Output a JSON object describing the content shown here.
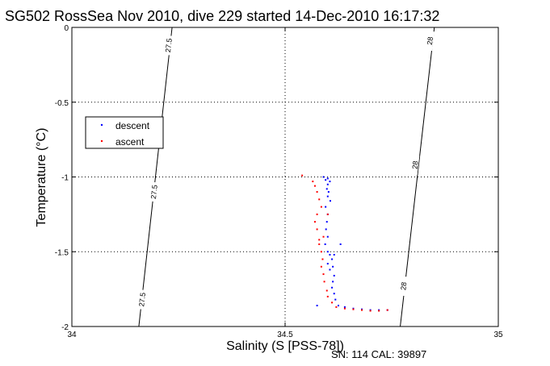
{
  "chart_data": {
    "type": "scatter",
    "title": "SG502 RossSea Nov 2010, dive 229 started 14-Dec-2010 16:17:32",
    "xlabel": "Salinity (S [PSS-78])",
    "ylabel": "Temperature (°C)",
    "xlim": [
      34,
      35
    ],
    "ylim": [
      -2,
      0
    ],
    "x_ticks": [
      34,
      34.5,
      35
    ],
    "x_tick_labels": [
      "34",
      "34.5",
      "35"
    ],
    "y_ticks": [
      0,
      -0.5,
      -1,
      -1.5,
      -2
    ],
    "y_tick_labels": [
      "0",
      "-0.5",
      "-1",
      "-1.5",
      "-2"
    ],
    "grid": true,
    "legend_position": "upper-left",
    "footer": "SN: 114  CAL: 39897",
    "density_contours": [
      {
        "label": "27.5",
        "points": [
          [
            34.157,
            -2
          ],
          [
            34.235,
            0
          ]
        ],
        "label_positions": [
          [
            34.165,
            -1.82
          ],
          [
            34.193,
            -1.1
          ],
          [
            34.227,
            -0.12
          ]
        ]
      },
      {
        "label": "28",
        "points": [
          [
            34.77,
            -2
          ],
          [
            34.85,
            0
          ]
        ],
        "label_positions": [
          [
            34.778,
            -1.73
          ],
          [
            34.805,
            -0.92
          ],
          [
            34.84,
            -0.09
          ]
        ]
      }
    ],
    "series": [
      {
        "name": "descent",
        "color": "#0000ff",
        "marker": "dot",
        "points": [
          [
            34.59,
            -1.0
          ],
          [
            34.6,
            -1.01
          ],
          [
            34.595,
            -1.02
          ],
          [
            34.605,
            -1.03
          ],
          [
            34.6,
            -1.05
          ],
          [
            34.598,
            -1.08
          ],
          [
            34.602,
            -1.1
          ],
          [
            34.6,
            -1.13
          ],
          [
            34.606,
            -1.16
          ],
          [
            34.595,
            -1.2
          ],
          [
            34.6,
            -1.25
          ],
          [
            34.598,
            -1.3
          ],
          [
            34.596,
            -1.35
          ],
          [
            34.6,
            -1.4
          ],
          [
            34.594,
            -1.45
          ],
          [
            34.6,
            -1.5
          ],
          [
            34.605,
            -1.52
          ],
          [
            34.61,
            -1.55
          ],
          [
            34.6,
            -1.58
          ],
          [
            34.612,
            -1.6
          ],
          [
            34.605,
            -1.62
          ],
          [
            34.615,
            -1.66
          ],
          [
            34.612,
            -1.7
          ],
          [
            34.61,
            -1.74
          ],
          [
            34.615,
            -1.78
          ],
          [
            34.618,
            -1.82
          ],
          [
            34.625,
            -1.86
          ],
          [
            34.64,
            -1.87
          ],
          [
            34.66,
            -1.88
          ],
          [
            34.68,
            -1.885
          ],
          [
            34.7,
            -1.89
          ],
          [
            34.72,
            -1.89
          ],
          [
            34.74,
            -1.89
          ],
          [
            34.575,
            -1.86
          ],
          [
            34.63,
            -1.45
          ],
          [
            34.615,
            -1.52
          ]
        ]
      },
      {
        "name": "ascent",
        "color": "#ff0000",
        "marker": "dot",
        "points": [
          [
            34.54,
            -0.99
          ],
          [
            34.565,
            -1.03
          ],
          [
            34.57,
            -1.06
          ],
          [
            34.575,
            -1.1
          ],
          [
            34.58,
            -1.15
          ],
          [
            34.585,
            -1.2
          ],
          [
            34.575,
            -1.25
          ],
          [
            34.57,
            -1.3
          ],
          [
            34.575,
            -1.35
          ],
          [
            34.58,
            -1.42
          ],
          [
            34.585,
            -1.5
          ],
          [
            34.588,
            -1.55
          ],
          [
            34.585,
            -1.6
          ],
          [
            34.59,
            -1.65
          ],
          [
            34.592,
            -1.7
          ],
          [
            34.598,
            -1.76
          ],
          [
            34.6,
            -1.8
          ],
          [
            34.61,
            -1.84
          ],
          [
            34.62,
            -1.87
          ],
          [
            34.64,
            -1.88
          ],
          [
            34.66,
            -1.885
          ],
          [
            34.68,
            -1.89
          ],
          [
            34.7,
            -1.895
          ],
          [
            34.72,
            -1.895
          ],
          [
            34.74,
            -1.89
          ],
          [
            34.6,
            -1.25
          ],
          [
            34.59,
            -1.4
          ],
          [
            34.58,
            -1.45
          ]
        ]
      }
    ]
  }
}
